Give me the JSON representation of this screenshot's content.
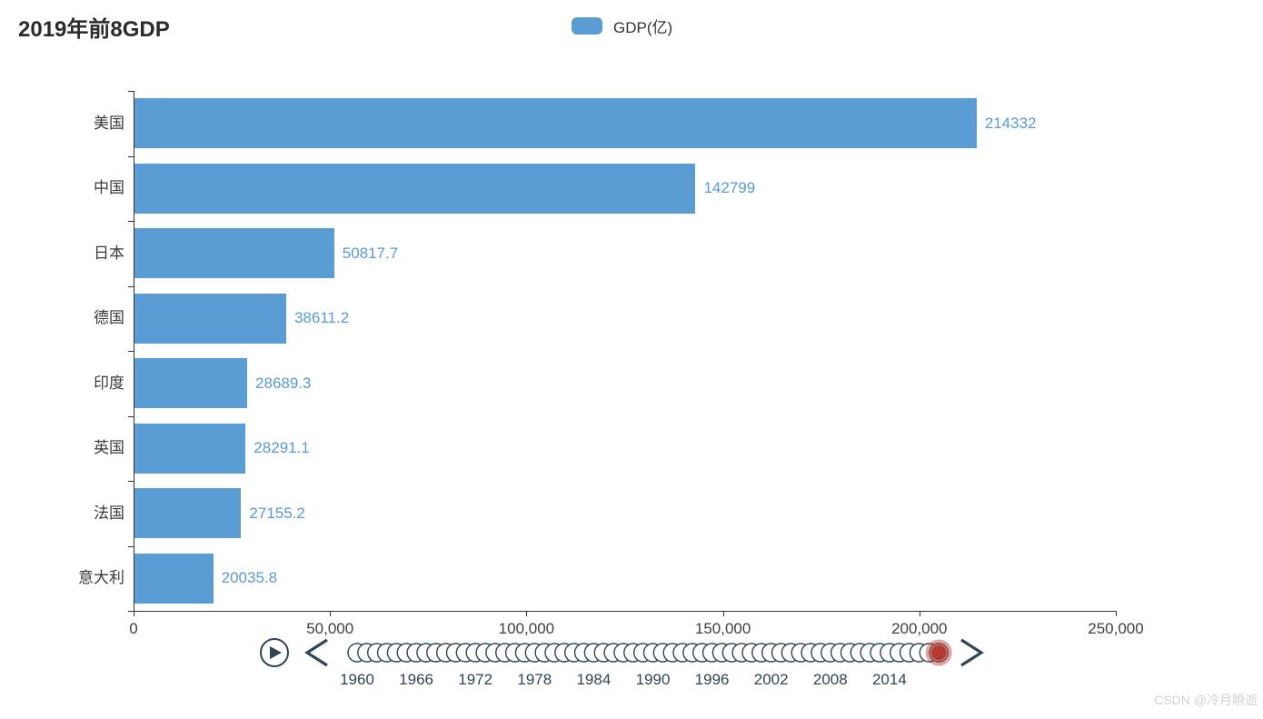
{
  "title": "2019年前8GDP",
  "legend": {
    "label": "GDP(亿)",
    "color": "#5a9dd4"
  },
  "chart_data": {
    "type": "bar",
    "orientation": "horizontal",
    "title": "2019年前8GDP",
    "series_name": "GDP(亿)",
    "categories": [
      "美国",
      "中国",
      "日本",
      "德国",
      "印度",
      "英国",
      "法国",
      "意大利"
    ],
    "values": [
      214332,
      142799,
      50817.7,
      38611.2,
      28689.3,
      28291.1,
      27155.2,
      20035.8
    ],
    "value_labels": [
      "214332",
      "142799",
      "50817.7",
      "38611.2",
      "28689.3",
      "28291.1",
      "27155.2",
      "20035.8"
    ],
    "xlim": [
      0,
      250000
    ],
    "x_ticks": [
      0,
      50000,
      100000,
      150000,
      200000,
      250000
    ],
    "x_tick_labels": [
      "0",
      "50,000",
      "100,000",
      "150,000",
      "200,000",
      "250,000"
    ],
    "grid": false,
    "legend_position": "top-center",
    "bar_color": "#5a9dd4",
    "value_label_color": "#5a9bd5",
    "axis_color": "#333333"
  },
  "timeline": {
    "start_year": 1960,
    "end_year": 2019,
    "current_year": 2019,
    "tick_labels": [
      "1960",
      "1966",
      "1972",
      "1978",
      "1984",
      "1990",
      "1996",
      "2002",
      "2008",
      "2014"
    ],
    "label_interval": 6,
    "item_fill": "#ffffff",
    "item_border_color": "#304654",
    "control_color": "#304654",
    "checkpoint_color": "#b63830",
    "checkpoint_halo_color": "rgba(182,56,48,0.45)",
    "play_icon": "play-circle-icon",
    "prev_icon": "chevron-left-icon",
    "next_icon": "chevron-right-icon"
  },
  "watermark": "CSDN @冷月瞬逝"
}
